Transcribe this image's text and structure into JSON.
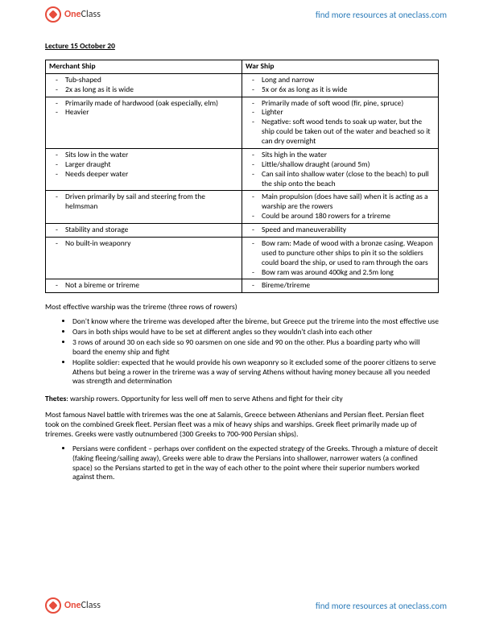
{
  "brand": {
    "prefix": "One",
    "suffix": "Class"
  },
  "header_link": "find more resources at oneclass.com",
  "footer_link": "find more resources at oneclass.com",
  "lecture_title": "Lecture 15 October 20",
  "table": {
    "col1_header": "Merchant Ship",
    "col2_header": "War Ship",
    "rows": [
      {
        "left": [
          "Tub-shaped",
          "2x as long as it is wide"
        ],
        "right": [
          "Long and narrow",
          "5x or 6x as long as it is wide"
        ]
      },
      {
        "left": [
          "Primarily made of hardwood (oak especially, elm)",
          "Heavier"
        ],
        "right": [
          "Primarily made of soft wood (fir, pine, spruce)",
          "Lighter",
          "Negative: soft wood tends to soak up water, but the ship could be taken out of the water and beached so it can dry overnight"
        ]
      },
      {
        "left": [
          "Sits low in the water",
          "Larger draught",
          "Needs deeper water"
        ],
        "right": [
          "Sits high in the water",
          "Little/shallow draught (around 5m)",
          "Can sail into shallow water (close to the beach) to pull the ship onto the beach"
        ]
      },
      {
        "left": [
          "Driven primarily by sail and steering from the helmsman"
        ],
        "right": [
          "Main propulsion (does have sail) when it is acting as a warship are the rowers",
          "Could be around 180 rowers for a trireme"
        ]
      },
      {
        "left": [
          "Stability and storage"
        ],
        "right": [
          "Speed and maneuverability"
        ]
      },
      {
        "left": [
          "No built-in weaponry"
        ],
        "right": [
          "Bow ram: Made of wood with a bronze casing. Weapon used to puncture other ships to pin it so the soldiers could board the ship, or used to ram through the oars",
          "Bow ram was around 400kg and 2.5m long"
        ]
      },
      {
        "left": [
          "Not a bireme or trireme"
        ],
        "right": [
          "Bireme/trireme"
        ]
      }
    ]
  },
  "para1": "Most effective warship was the trireme (three rows of rowers)",
  "bullets1": [
    "Don't know where the trireme was developed after the bireme, but Greece put the trireme into the most effective use",
    "Oars in both ships would have to be set at different angles so they wouldn't clash into each other",
    "3 rows of around 30 on each side so 90 oarsmen on one side and 90 on the other. Plus a boarding party who will board the enemy ship and fight",
    "Hoplite soldier: expected that he would provide his own weaponry so it excluded some of the poorer citizens to serve Athens but being a rower in the trireme was a way of serving Athens without having money because all you needed was strength and determination"
  ],
  "thetes_term": "Thetes",
  "thetes_def": ": warship rowers. Opportunity for less well off men to serve Athens and fight for their city",
  "para2": "Most famous Navel battle with triremes was the one at Salamis, Greece between Athenians and Persian fleet. Persian fleet took on the combined Greek fleet. Persian fleet was a mix of heavy ships and warships. Greek fleet primarily made up of triremes. Greeks were vastly outnumbered (300 Greeks to 700-900 Persian ships).",
  "bullets2": [
    "Persians were confident – perhaps over confident on the expected strategy of the Greeks. Through a mixture of deceit (faking fleeing/sailing away), Greeks were able to draw the Persians into shallower, narrower waters (a confined space) so the Persians started to get in the way of each other to the point where their superior numbers worked against them."
  ]
}
